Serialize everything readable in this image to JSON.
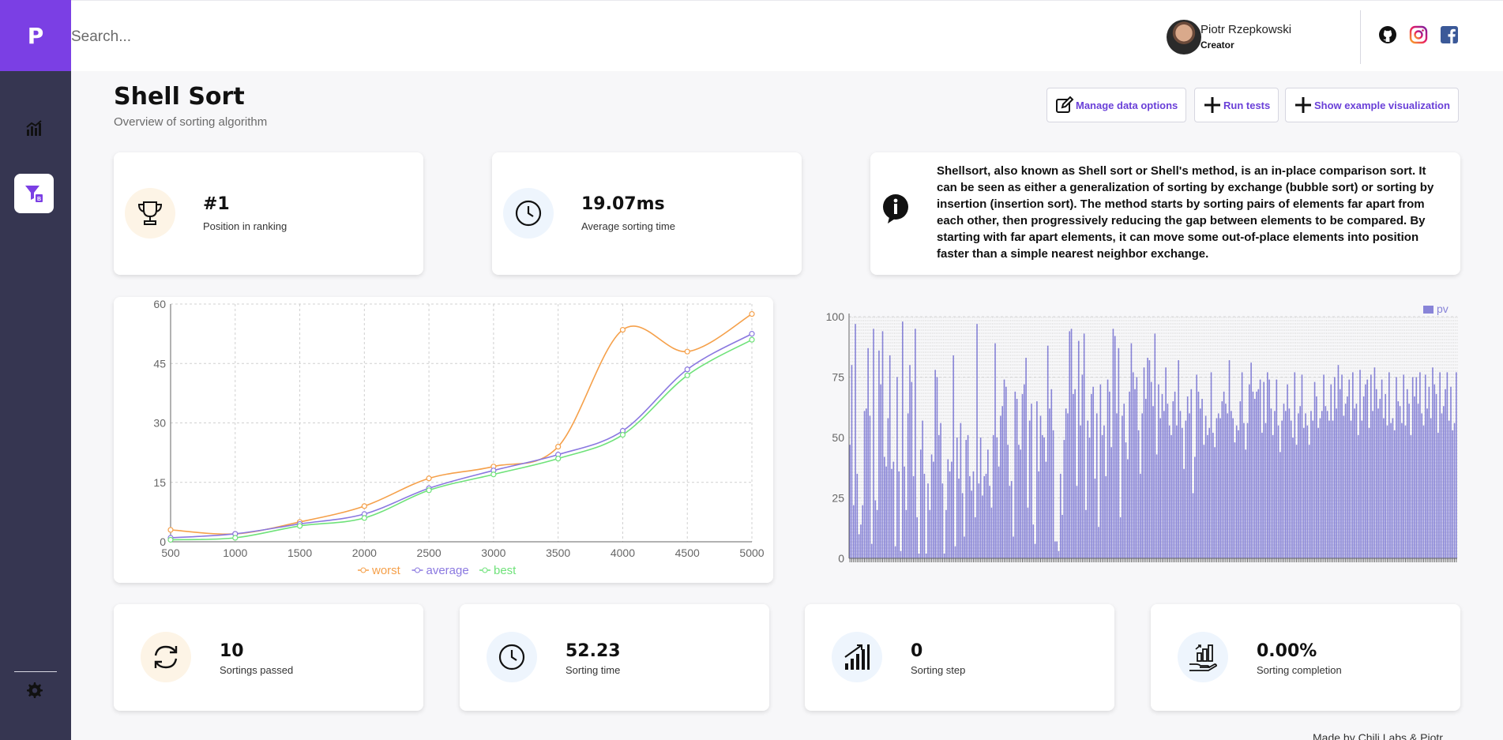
{
  "app": {
    "logo_letter": "P"
  },
  "sidebar": {
    "items": [
      {
        "icon": "bar-chart-icon"
      },
      {
        "icon": "filter-sort-icon",
        "active": true
      }
    ],
    "settings_icon": "gear-icon"
  },
  "search": {
    "placeholder": "Search..."
  },
  "user": {
    "name": "Piotr Rzepkowski",
    "role": "Creator"
  },
  "social": [
    "github-icon",
    "instagram-icon",
    "facebook-icon"
  ],
  "header": {
    "title": "Shell Sort",
    "subtitle": "Overview of sorting algorithm"
  },
  "actions": {
    "manage": "Manage data options",
    "run": "Run tests",
    "show": "Show example visualization"
  },
  "stats_top": {
    "ranking": {
      "value": "#1",
      "label": "Position in ranking",
      "icon": "trophy-icon"
    },
    "avg_time": {
      "value": "19.07ms",
      "label": "Average sorting time",
      "icon": "clock-icon"
    }
  },
  "info": {
    "icon": "info-icon",
    "text": "Shellsort, also known as Shell sort or Shell's method, is an in-place comparison sort. It can be seen as either a generalization of sorting by exchange (bubble sort) or sorting by insertion (insertion sort). The method starts by sorting pairs of elements far apart from each other, then progressively reducing the gap between elements to be compared. By starting with far apart elements, it can move some out-of-place elements into position faster than a simple nearest neighbor exchange."
  },
  "stats_bottom": {
    "passed": {
      "value": "10",
      "label": "Sortings passed",
      "icon": "refresh-icon"
    },
    "time": {
      "value": "52.23",
      "label": "Sorting time",
      "icon": "clock-icon"
    },
    "step": {
      "value": "0",
      "label": "Sorting step",
      "icon": "signal-bars-icon"
    },
    "completion": {
      "value": "0.00%",
      "label": "Sorting completion",
      "icon": "hand-chart-icon"
    }
  },
  "footer": {
    "text": "Made by Chili Labs & Piotr"
  },
  "colors": {
    "accent": "#7b3fe4",
    "sidebar": "#363651",
    "worst": "#f5a04a",
    "average": "#8a78e0",
    "best": "#6fe27a",
    "bars": "#8884d8"
  },
  "chart_data": [
    {
      "type": "line",
      "x": [
        500,
        1000,
        1500,
        2000,
        2500,
        3000,
        3500,
        4000,
        4500,
        5000
      ],
      "series": [
        {
          "name": "worst",
          "values": [
            3,
            2,
            5,
            9,
            16,
            19,
            24,
            53.5,
            48,
            57.5
          ]
        },
        {
          "name": "average",
          "values": [
            1,
            2,
            4.5,
            7,
            13.5,
            18,
            22,
            28,
            43.5,
            52.5
          ]
        },
        {
          "name": "best",
          "values": [
            0.5,
            1,
            4,
            6,
            13,
            17,
            21,
            27,
            42,
            51
          ]
        }
      ],
      "yticks": [
        0,
        15,
        30,
        45,
        60
      ],
      "ylim": [
        0,
        60
      ],
      "grid": true,
      "legend": "bottom"
    },
    {
      "type": "bar",
      "series": [
        {
          "name": "pv",
          "values": [
            47,
            80,
            22,
            97,
            35,
            10,
            14,
            22,
            61,
            62,
            87,
            59,
            6,
            95,
            24,
            20,
            86,
            72,
            94,
            42,
            38,
            58,
            84,
            37,
            40,
            5,
            75,
            36,
            3,
            98,
            38,
            20,
            60,
            80,
            73,
            34,
            95,
            17,
            2,
            45,
            57,
            35,
            2,
            31,
            20,
            43,
            40,
            78,
            75,
            51,
            56,
            31,
            2,
            20,
            41,
            36,
            40,
            84,
            5,
            50,
            33,
            56,
            27,
            9,
            49,
            51,
            34,
            28,
            36,
            17,
            97,
            31,
            50,
            26,
            34,
            35,
            45,
            30,
            21,
            51,
            89,
            50,
            38,
            59,
            63,
            74,
            71,
            47,
            30,
            32,
            9,
            69,
            66,
            47,
            45,
            68,
            72,
            83,
            21,
            57,
            64,
            14,
            6,
            65,
            36,
            59,
            51,
            50,
            40,
            88,
            62,
            70,
            53,
            7,
            7,
            3,
            35,
            18,
            49,
            62,
            60,
            94,
            95,
            68,
            70,
            30,
            90,
            55,
            76,
            93,
            20,
            57,
            50,
            68,
            71,
            33,
            60,
            13,
            72,
            51,
            55,
            34,
            74,
            69,
            46,
            95,
            92,
            60,
            87,
            17,
            59,
            64,
            48,
            41,
            69,
            89,
            77,
            70,
            75,
            53,
            35,
            60,
            79,
            66,
            83,
            82,
            73,
            63,
            93,
            43,
            72,
            58,
            68,
            61,
            79,
            64,
            55,
            51,
            65,
            69,
            55,
            82,
            61,
            54,
            37,
            57,
            67,
            60,
            70,
            27,
            42,
            76,
            69,
            62,
            66,
            47,
            59,
            51,
            54,
            77,
            52,
            46,
            58,
            60,
            58,
            65,
            69,
            64,
            60,
            82,
            61,
            58,
            48,
            55,
            53,
            65,
            77,
            56,
            45,
            56,
            72,
            81,
            69,
            66,
            69,
            70,
            74,
            52,
            73,
            56,
            77,
            74,
            62,
            51,
            61,
            74,
            55,
            44,
            57,
            64,
            61,
            72,
            62,
            57,
            50,
            77,
            47,
            60,
            63,
            76,
            54,
            60,
            55,
            47,
            61,
            57,
            73,
            67,
            54,
            58,
            61,
            76,
            63,
            61,
            57,
            72,
            57,
            75,
            62,
            80,
            70,
            76,
            59,
            64,
            67,
            74,
            57,
            77,
            62,
            64,
            51,
            78,
            57,
            67,
            72,
            74,
            54,
            76,
            61,
            79,
            70,
            62,
            66,
            74,
            58,
            68,
            55,
            77,
            56,
            58,
            53,
            75,
            65,
            63,
            56,
            76,
            55,
            70,
            64,
            51,
            75,
            67,
            75,
            64,
            77,
            60,
            55,
            76,
            62,
            71,
            58,
            79,
            72,
            68,
            52,
            77,
            60,
            63,
            70,
            77,
            57,
            71,
            53,
            56,
            77
          ]
        }
      ],
      "yticks": [
        0,
        25,
        50,
        75,
        100
      ],
      "ylim": [
        0,
        100
      ],
      "grid": true,
      "legend": "top-right"
    }
  ]
}
